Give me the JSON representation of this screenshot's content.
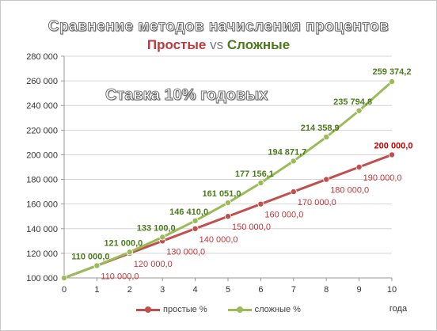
{
  "chart_data": {
    "type": "line",
    "title": "Сравнение методов начисления процентов",
    "subtitle": {
      "simple": "Простые",
      "vs": "vs",
      "compound": "Сложные"
    },
    "annotation": "Ставка 10% годовых",
    "xlabel": "года",
    "ylabel": "",
    "x": [
      0,
      1,
      2,
      3,
      4,
      5,
      6,
      7,
      8,
      9,
      10
    ],
    "xlim": [
      0,
      10
    ],
    "ylim": [
      100000,
      280000
    ],
    "yticks": [
      "100 000",
      "120 000",
      "140 000",
      "160 000",
      "180 000",
      "200 000",
      "220 000",
      "240 000",
      "260 000",
      "280 000"
    ],
    "grid": true,
    "legend_position": "bottom",
    "series": [
      {
        "name": "простые %",
        "color": "#c0504d",
        "values": [
          100000,
          110000,
          120000,
          130000,
          140000,
          150000,
          160000,
          170000,
          180000,
          190000,
          200000
        ],
        "labels": [
          "",
          "110 000,0",
          "120 000,0",
          "130 000,0",
          "140 000,0",
          "150 000,0",
          "160 000,0",
          "170 000,0",
          "180 000,0",
          "190 000,0",
          "200 000,0"
        ]
      },
      {
        "name": "сложные %",
        "color": "#9bbb59",
        "values": [
          100000,
          110000,
          121000,
          133100,
          146410,
          161051,
          177156.1,
          194871.7,
          214358.9,
          235794.8,
          259374.2
        ],
        "labels": [
          "",
          "110 000,0",
          "121 000,0",
          "133 100,0",
          "146 410,0",
          "161 051,0",
          "177 156,1",
          "194 871,7",
          "214 358,9",
          "235 794,8",
          "259 374,2"
        ]
      }
    ]
  }
}
